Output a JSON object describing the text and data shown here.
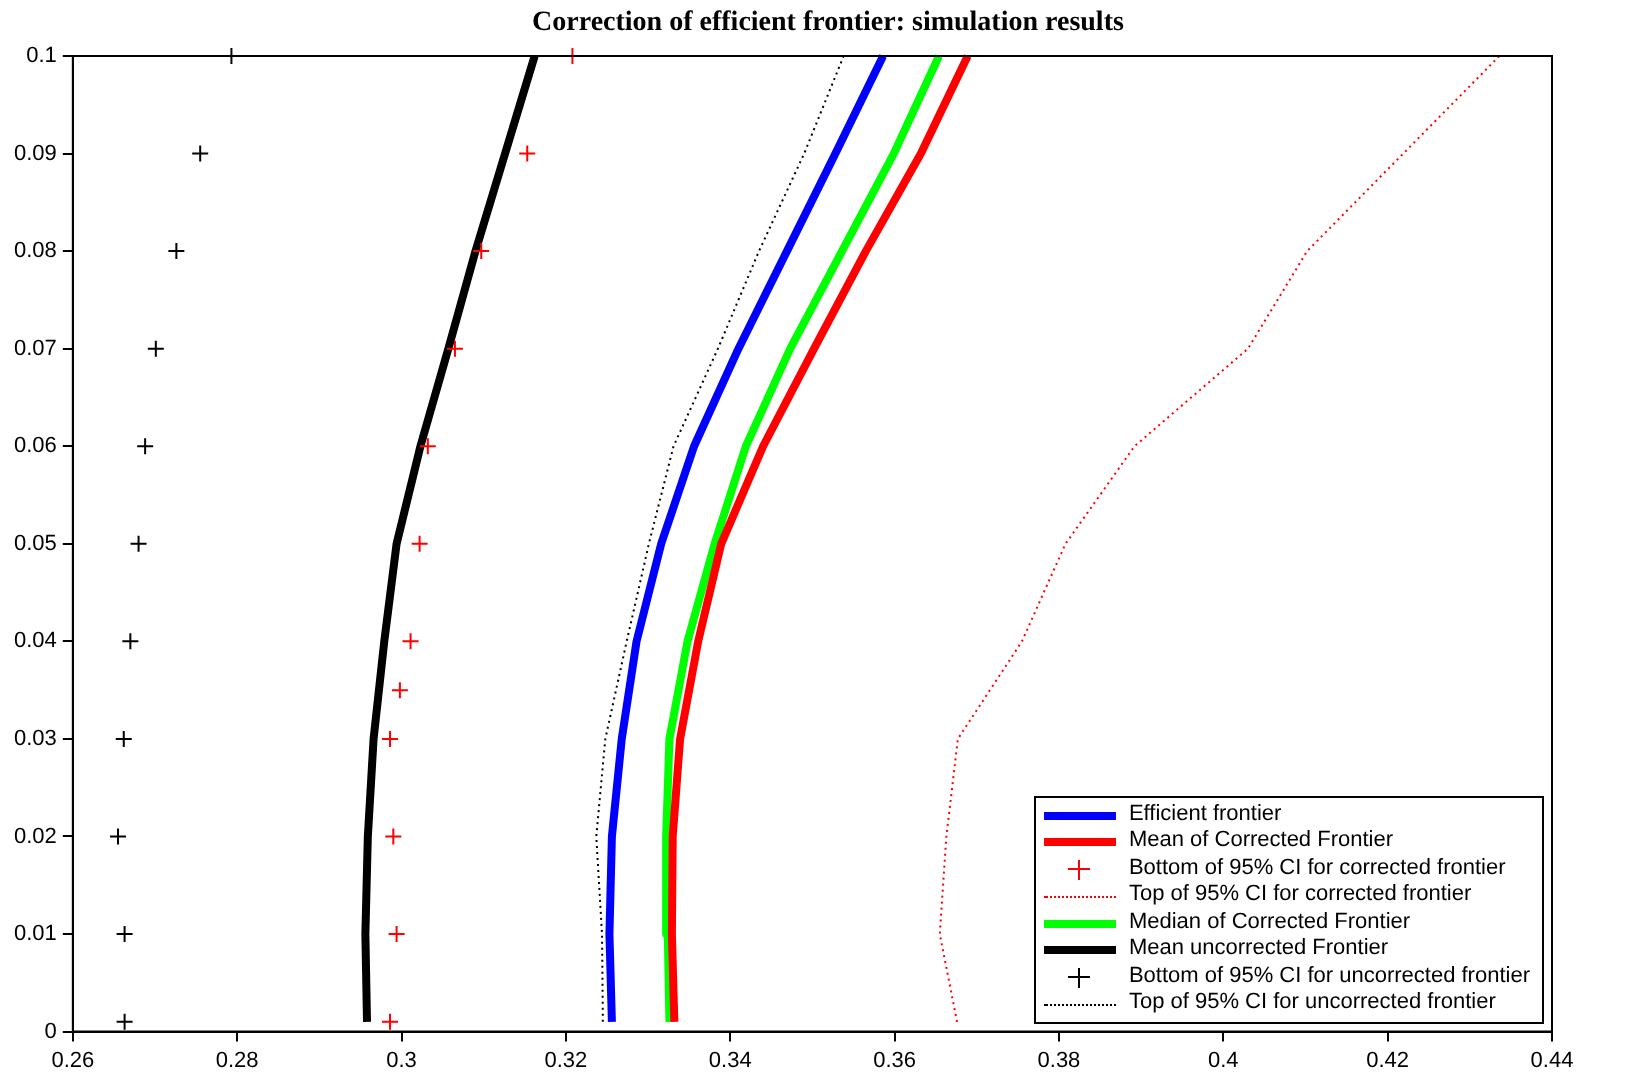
{
  "chart_data": {
    "type": "line",
    "title": "Correction of efficient frontier: simulation results",
    "xlim": [
      0.26,
      0.44
    ],
    "xticks": [
      0.26,
      0.28,
      0.3,
      0.32,
      0.34,
      0.36,
      0.38,
      0.4,
      0.42,
      0.44
    ],
    "ylim": [
      0,
      0.1
    ],
    "yticks": [
      0,
      0.01,
      0.02,
      0.03,
      0.04,
      0.05,
      0.06,
      0.07,
      0.08,
      0.09,
      0.1
    ],
    "grid": false,
    "legend": "bottom right",
    "series": [
      {
        "name": "Efficient frontier",
        "color": "#0000ff",
        "line_style": "solid",
        "marker": "none",
        "x": [
          0.3256,
          0.3253,
          0.3256,
          0.3268,
          0.3286,
          0.3316,
          0.3356,
          0.341,
          0.3469,
          0.3528,
          0.3586
        ],
        "values": [
          0.001,
          0.01,
          0.02,
          0.03,
          0.04,
          0.05,
          0.06,
          0.07,
          0.08,
          0.09,
          0.1
        ]
      },
      {
        "name": "Mean of Corrected Frontier",
        "color": "#ff0000",
        "line_style": "solid",
        "marker": "none",
        "x": [
          0.3332,
          0.3329,
          0.333,
          0.3339,
          0.3361,
          0.3389,
          0.344,
          0.3502,
          0.3565,
          0.3632,
          0.3689
        ],
        "values": [
          0.001,
          0.01,
          0.02,
          0.03,
          0.04,
          0.05,
          0.06,
          0.07,
          0.08,
          0.09,
          0.1
        ]
      },
      {
        "name": "Bottom of 95% CI for corrected frontier",
        "type": "scatter",
        "color": "#ff0000",
        "marker": "cross",
        "x": [
          0.2986,
          0.2994,
          0.299,
          0.2986,
          0.2998,
          0.3011,
          0.3022,
          0.3032,
          0.3065,
          0.3097,
          0.3153,
          0.3208
        ],
        "values": [
          0.001,
          0.01,
          0.02,
          0.03,
          0.035,
          0.04,
          0.05,
          0.06,
          0.07,
          0.08,
          0.09,
          0.1
        ]
      },
      {
        "name": "Top of 95% CI for corrected frontier",
        "color": "#ff0000",
        "line_style": "dotted",
        "marker": "none",
        "x": [
          0.3676,
          0.3655,
          0.3663,
          0.3677,
          0.3755,
          0.3808,
          0.3892,
          0.403,
          0.4102,
          0.4219,
          0.4336
        ],
        "values": [
          0.001,
          0.01,
          0.02,
          0.03,
          0.04,
          0.05,
          0.06,
          0.07,
          0.08,
          0.09,
          0.1
        ]
      },
      {
        "name": "Median of Corrected Frontier",
        "color": "#00ff00",
        "line_style": "solid",
        "marker": "none",
        "x": [
          0.3326,
          0.3324,
          0.3322,
          0.3326,
          0.3348,
          0.3381,
          0.3419,
          0.3473,
          0.3536,
          0.3599,
          0.3654
        ],
        "values": [
          0.001,
          0.01,
          0.02,
          0.03,
          0.04,
          0.05,
          0.06,
          0.07,
          0.08,
          0.09,
          0.1
        ]
      },
      {
        "name": "Mean uncorrected Frontier",
        "color": "#000000",
        "line_style": "solid",
        "marker": "none",
        "x": [
          0.2958,
          0.2956,
          0.2959,
          0.2966,
          0.2979,
          0.2994,
          0.3023,
          0.3057,
          0.309,
          0.3126,
          0.3162
        ],
        "values": [
          0.001,
          0.01,
          0.02,
          0.03,
          0.04,
          0.05,
          0.06,
          0.07,
          0.08,
          0.09,
          0.1
        ]
      },
      {
        "name": "Bottom of 95% CI for uncorrected frontier",
        "type": "scatter",
        "color": "#000000",
        "marker": "cross",
        "x": [
          0.2663,
          0.2663,
          0.2655,
          0.2662,
          0.267,
          0.268,
          0.2688,
          0.2701,
          0.2726,
          0.2755,
          0.2793
        ],
        "values": [
          0.001,
          0.01,
          0.02,
          0.03,
          0.04,
          0.05,
          0.06,
          0.07,
          0.08,
          0.09,
          0.1
        ]
      },
      {
        "name": "Top of 95% CI for uncorrected frontier",
        "color": "#000000",
        "line_style": "dotted",
        "marker": "none",
        "x": [
          0.3245,
          0.3244,
          0.3237,
          0.3248,
          0.3274,
          0.3301,
          0.3331,
          0.3385,
          0.3435,
          0.349,
          0.3538
        ],
        "values": [
          0.001,
          0.01,
          0.02,
          0.03,
          0.04,
          0.05,
          0.06,
          0.07,
          0.08,
          0.09,
          0.1
        ]
      }
    ]
  }
}
